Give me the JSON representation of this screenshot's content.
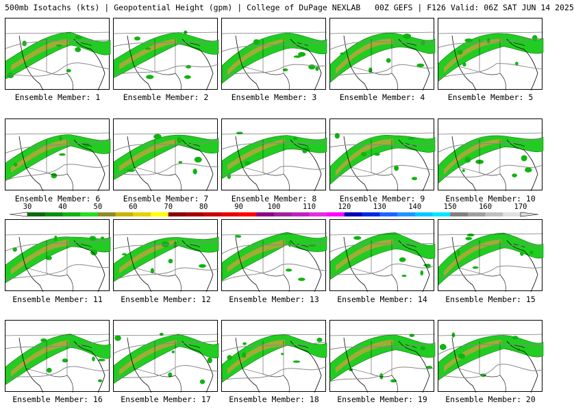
{
  "title": "500mb Isotachs (kts) | Geopotential Height (gpm) | College of DuPage NEXLAB   00Z GEFS | F126 Valid: 06Z SAT JUN 14 2025",
  "panels": [
    {
      "label": "Ensemble Member: 1"
    },
    {
      "label": "Ensemble Member: 2"
    },
    {
      "label": "Ensemble Member: 3"
    },
    {
      "label": "Ensemble Member: 4"
    },
    {
      "label": "Ensemble Member: 5"
    },
    {
      "label": "Ensemble Member: 6"
    },
    {
      "label": "Ensemble Member: 7"
    },
    {
      "label": "Ensemble Member: 8"
    },
    {
      "label": "Ensemble Member: 9"
    },
    {
      "label": "Ensemble Member: 10"
    },
    {
      "label": "Ensemble Member: 11"
    },
    {
      "label": "Ensemble Member: 12"
    },
    {
      "label": "Ensemble Member: 13"
    },
    {
      "label": "Ensemble Member: 14"
    },
    {
      "label": "Ensemble Member: 15"
    },
    {
      "label": "Ensemble Member: 16"
    },
    {
      "label": "Ensemble Member: 17"
    },
    {
      "label": "Ensemble Member: 18"
    },
    {
      "label": "Ensemble Member: 19"
    },
    {
      "label": "Ensemble Member: 20"
    }
  ],
  "colorbar": {
    "ticks": [
      "30",
      "40",
      "50",
      "60",
      "70",
      "80",
      "90",
      "100",
      "110",
      "120",
      "130",
      "140",
      "150",
      "160",
      "170"
    ],
    "colors": [
      "#0b6b0b",
      "#0a8f0a",
      "#11b311",
      "#22dd22",
      "#8c8c2a",
      "#c8b400",
      "#e6d200",
      "#ffff00",
      "#8b0000",
      "#a40000",
      "#c80000",
      "#e60000",
      "#ff0000",
      "#8b008b",
      "#a020a0",
      "#c020c0",
      "#e030e0",
      "#ff00ff",
      "#0000b4",
      "#0028e6",
      "#1e64ff",
      "#1e96ff",
      "#00c8ff",
      "#00e6ff",
      "#808080",
      "#a0a0a0",
      "#c0c0c0",
      "#e0e0e0"
    ]
  }
}
